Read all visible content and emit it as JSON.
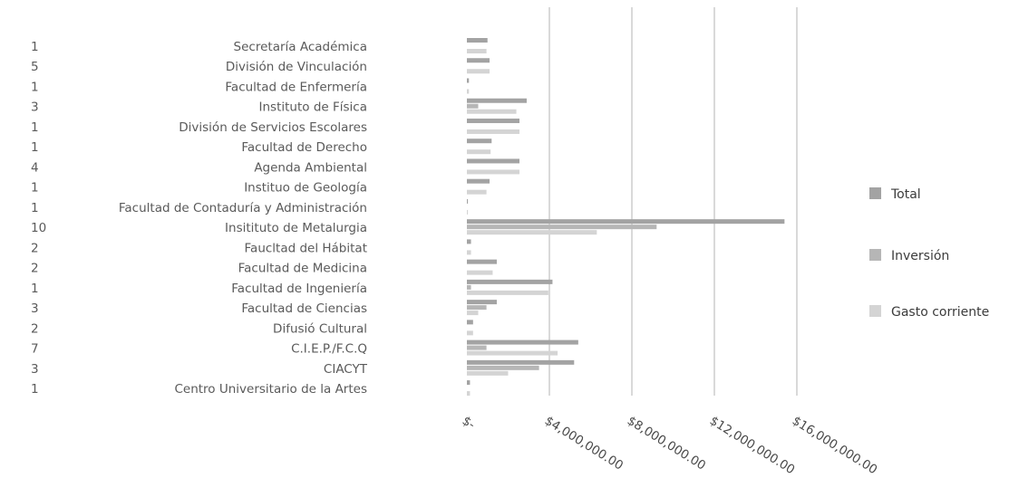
{
  "chart_data": {
    "type": "bar",
    "orientation": "horizontal",
    "title": "",
    "xlabel": "",
    "ylabel": "",
    "categories": [
      "Secretaría Académica",
      "División de Vinculación",
      "Facultad de Enfermería",
      "Instituto de Física",
      "División de Servicios Escolares",
      "Facultad de Derecho",
      "Agenda Ambiental",
      "Instituo de Geología",
      "Facultad de Contaduría y Administración",
      "Insitituto de Metalurgia",
      "Faucltad del Hábitat",
      "Facultad de Medicina",
      "Facultad de Ingeniería",
      "Facultad de Ciencias",
      "Difusió Cultural",
      "C.I.E.P./F.C.Q",
      "CIACYT",
      "Centro Universitario de la Artes"
    ],
    "counts": [
      "1",
      "5",
      "1",
      "3",
      "1",
      "1",
      "4",
      "1",
      "1",
      "10",
      "2",
      "2",
      "1",
      "3",
      "2",
      "7",
      "3",
      "1"
    ],
    "series": [
      {
        "name": "Total",
        "color": "#a3a3a3",
        "values": [
          1000000,
          1100000,
          100000,
          2900000,
          2550000,
          1200000,
          2550000,
          1100000,
          50000,
          15400000,
          200000,
          1450000,
          4150000,
          1450000,
          300000,
          5400000,
          5200000,
          150000
        ]
      },
      {
        "name": "Inversión",
        "color": "#b6b6b6",
        "values": [
          0,
          0,
          0,
          550000,
          0,
          0,
          0,
          0,
          0,
          9200000,
          0,
          0,
          200000,
          950000,
          0,
          950000,
          3500000,
          0
        ]
      },
      {
        "name": "Gasto corriente",
        "color": "#d4d4d4",
        "values": [
          950000,
          1100000,
          100000,
          2400000,
          2550000,
          1150000,
          2550000,
          950000,
          50000,
          6300000,
          200000,
          1250000,
          3950000,
          550000,
          300000,
          4400000,
          2000000,
          150000
        ]
      }
    ],
    "xlim": [
      0,
      16000000
    ],
    "x_ticks": [
      0,
      4000000,
      8000000,
      12000000,
      16000000
    ],
    "x_tick_labels": [
      "$-",
      "$4,000,000.00",
      "$8,000,000.00",
      "$12,000,000.00",
      "$16,000,000.00"
    ],
    "grid": true,
    "legend_position": "right"
  }
}
